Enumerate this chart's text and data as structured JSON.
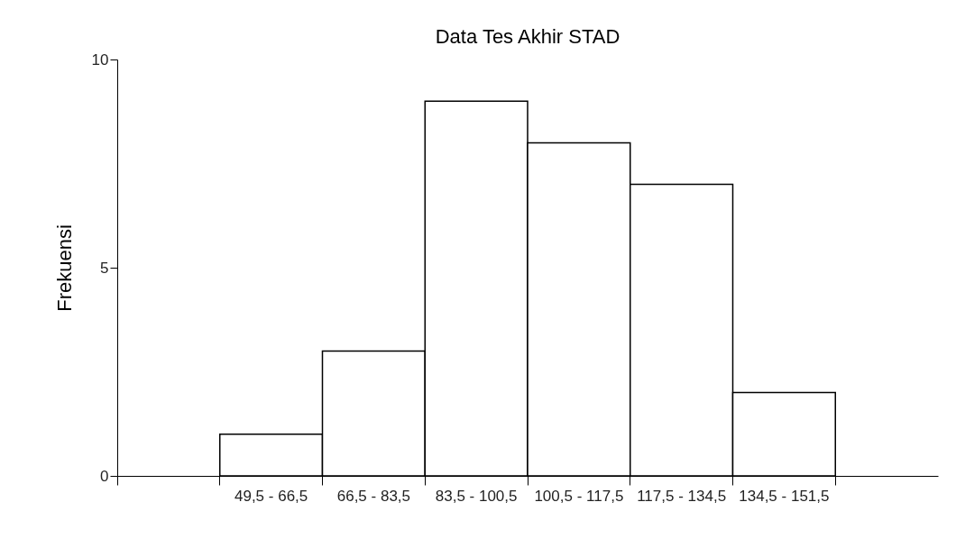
{
  "chart_data": {
    "type": "bar",
    "title": "Data Tes Akhir STAD",
    "ylabel": "Frekuensi",
    "categories": [
      null,
      "49,5 - 66,5",
      "66,5 - 83,5",
      "83,5 - 100,5",
      "100,5 - 117,5",
      "117,5 - 134,5",
      "134,5 - 151,5",
      null
    ],
    "series": [
      {
        "color": "#ffffff",
        "values": [
          null,
          1,
          3,
          9,
          8,
          7,
          2,
          null
        ]
      }
    ],
    "ylim": [
      0,
      10
    ],
    "yticks": [
      0,
      5,
      10
    ],
    "grid": false
  }
}
